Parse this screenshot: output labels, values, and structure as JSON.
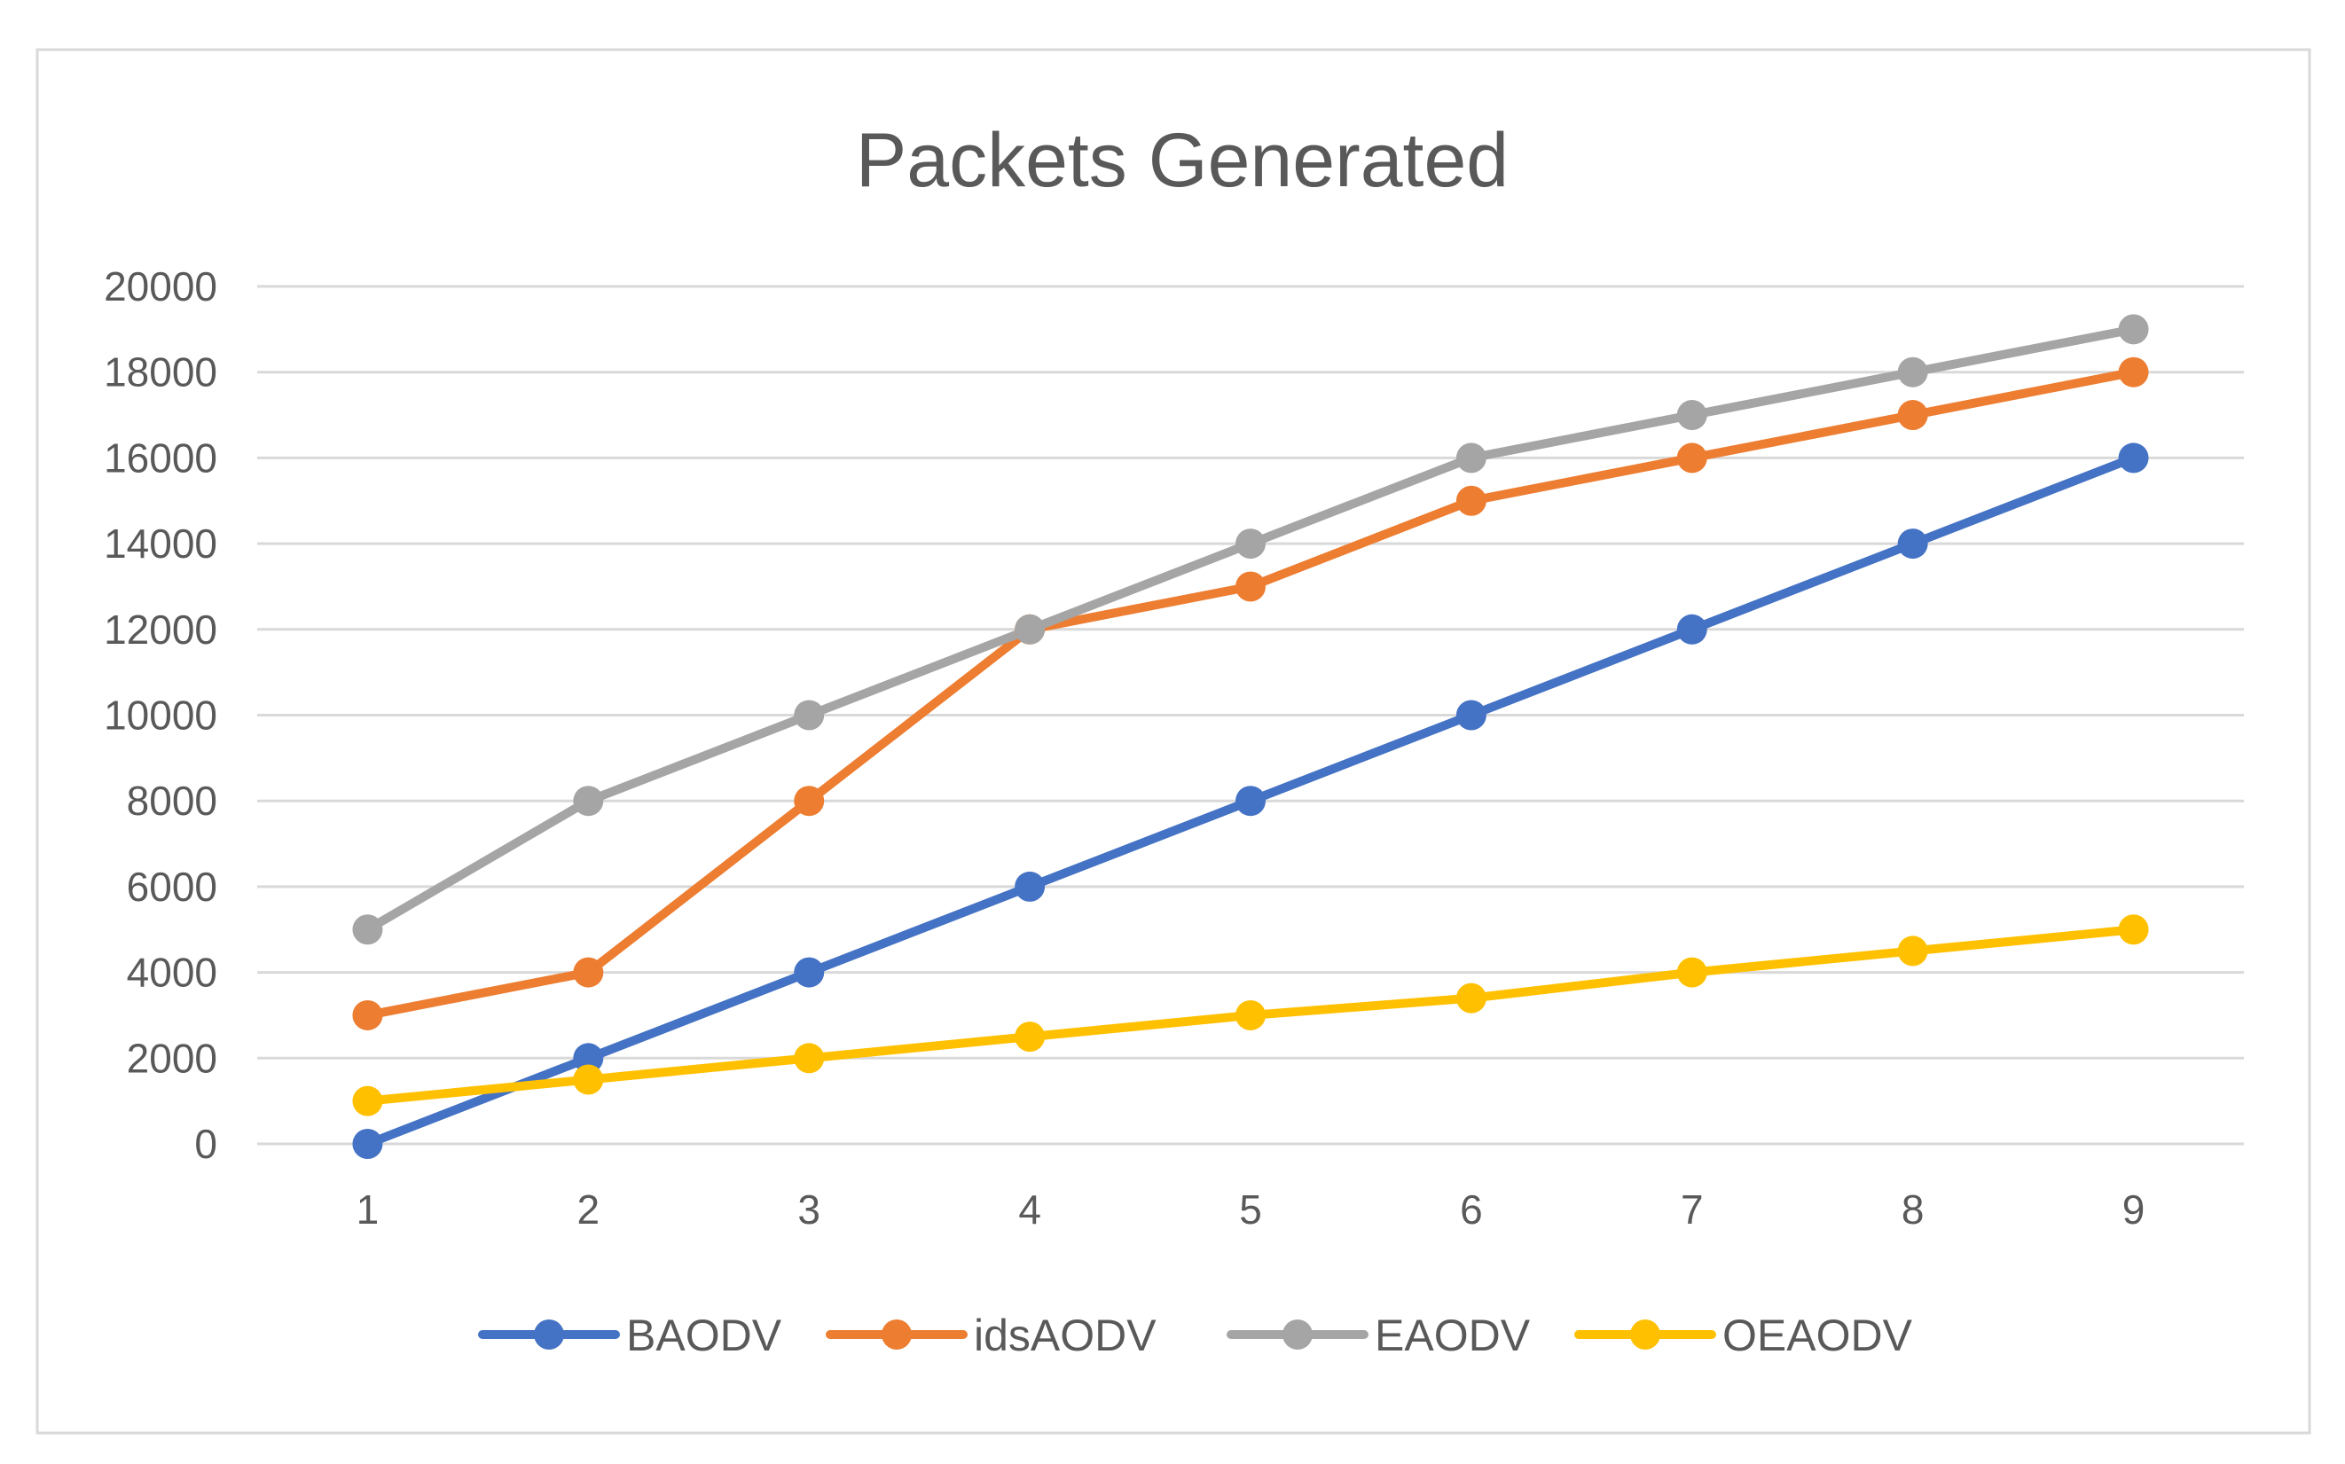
{
  "chart_data": {
    "type": "line",
    "title": "Packets Generated",
    "xlabel": "",
    "ylabel": "",
    "categories": [
      "1",
      "2",
      "3",
      "4",
      "5",
      "6",
      "7",
      "8",
      "9"
    ],
    "ylim": [
      0,
      20000
    ],
    "yticks": [
      0,
      2000,
      4000,
      6000,
      8000,
      10000,
      12000,
      14000,
      16000,
      18000,
      20000
    ],
    "grid": true,
    "legend_position": "bottom",
    "series": [
      {
        "name": "BAODV",
        "color": "#4472C4",
        "values": [
          0,
          2000,
          4000,
          6000,
          8000,
          10000,
          12000,
          14000,
          16000
        ]
      },
      {
        "name": "idsAODV",
        "color": "#ED7D31",
        "values": [
          3000,
          4000,
          8000,
          12000,
          13000,
          15000,
          16000,
          17000,
          18000
        ]
      },
      {
        "name": "EAODV",
        "color": "#A5A5A5",
        "values": [
          5000,
          8000,
          10000,
          12000,
          14000,
          16000,
          17000,
          18000,
          19000
        ]
      },
      {
        "name": "OEAODV",
        "color": "#FFC000",
        "values": [
          1000,
          1500,
          2000,
          2500,
          3000,
          3400,
          4000,
          4500,
          5000
        ]
      }
    ]
  }
}
